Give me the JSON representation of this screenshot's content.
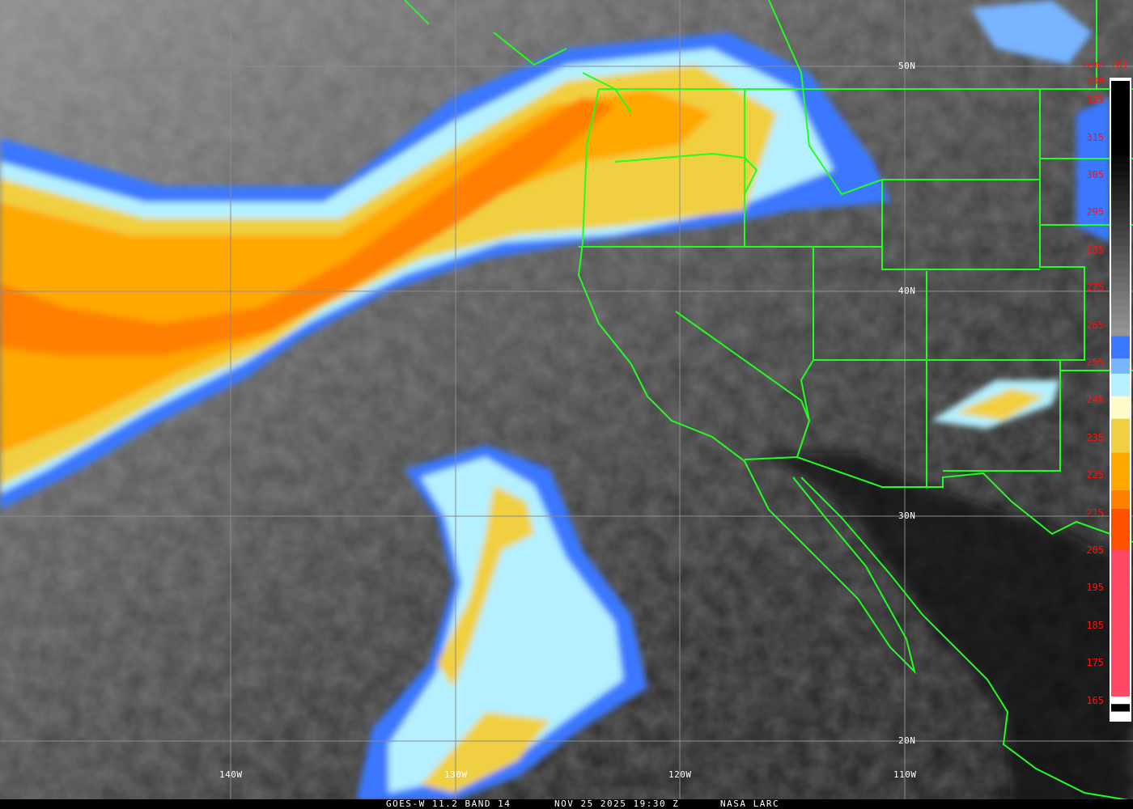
{
  "map": {
    "type": "satellite infrared imagery",
    "latitude_labels": [
      "50N",
      "40N",
      "30N",
      "20N"
    ],
    "longitude_labels": [
      "140W",
      "130W",
      "120W",
      "110W"
    ]
  },
  "colorbar": {
    "title": "Temp [K]",
    "ticks": [
      "330",
      "325",
      "315",
      "305",
      "295",
      "285",
      "275",
      "265",
      "255",
      "245",
      "235",
      "225",
      "215",
      "205",
      "195",
      "185",
      "175",
      "165"
    ],
    "colors": {
      "warm_top": "#000000",
      "cold_gray": "#9a9a9a",
      "blue": "#3a78ff",
      "light_blue": "#78b4ff",
      "cyan": "#b4f0ff",
      "pale_yellow": "#fffac8",
      "yellow": "#f0d040",
      "amber": "#ffa800",
      "orange": "#ff8000",
      "red_orange": "#ff5000",
      "pink": "#ff4864"
    }
  },
  "caption": {
    "product": "GOES-W 11.2 BAND 14",
    "datetime": "NOV 25 2025 19:30 Z",
    "source": "NASA LARC"
  },
  "colors": {
    "borders": "#20ff20",
    "grid": "#8c8c8c",
    "labels": "#ffffff",
    "colorbar_text": "#ff1010"
  }
}
